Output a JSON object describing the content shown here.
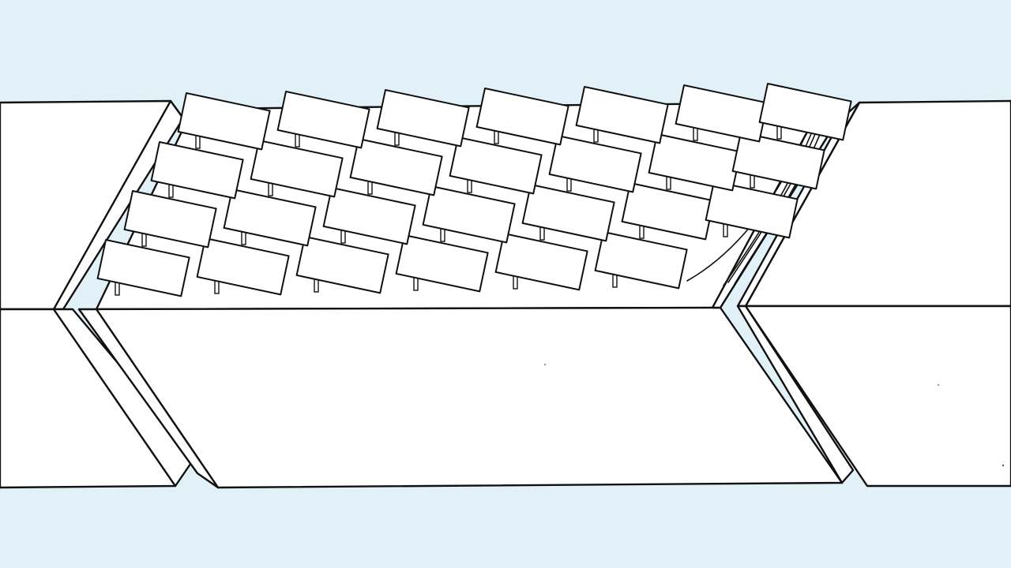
{
  "colors": {
    "background": "#e2f0f8",
    "paper": "#ffffff",
    "ink": "#111111"
  },
  "illustration": {
    "panel_rows": 4,
    "panel_columns": 7
  }
}
